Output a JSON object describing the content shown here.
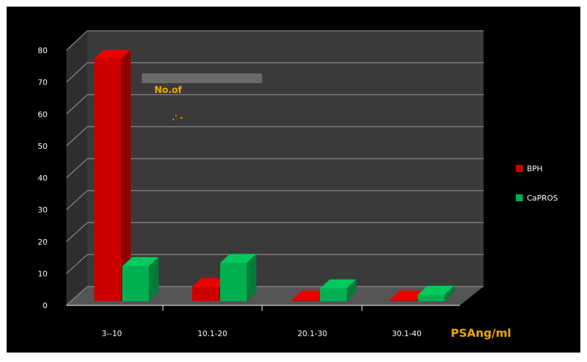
{
  "chart_data": {
    "type": "bar",
    "title": "",
    "xlabel": "PSAng/ml",
    "ylabel": "No.of",
    "ylabel_fragment": ".' -",
    "categories": [
      "3--10",
      "10.1-20",
      "20.1-30",
      "30.1-40"
    ],
    "series": [
      {
        "name": "BPH",
        "values": [
          76,
          4.5,
          0.5,
          0.5
        ]
      },
      {
        "name": "CaPROS",
        "values": [
          11,
          12,
          4,
          2
        ]
      }
    ],
    "ylim": [
      0,
      80
    ],
    "yticks": [
      0,
      10,
      20,
      30,
      40,
      50,
      60,
      70,
      80
    ],
    "grid": true,
    "legend_position": "right",
    "colors": {
      "background": "#000000",
      "frame": "#ffffff",
      "wall": "#3a3a3a",
      "floor": "#555555",
      "gridline": "#8a8a8a",
      "axis_text": "#ffffff",
      "label_text": "#f0a800",
      "series": [
        "#cc0000",
        "#00b050"
      ]
    }
  }
}
